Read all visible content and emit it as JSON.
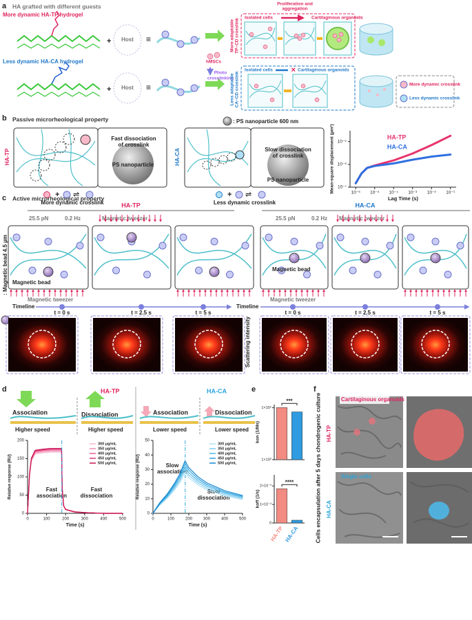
{
  "panel_a": {
    "label": "a",
    "heading": "HA grafted with different guests",
    "tp_title": "More dynamic HA-TP hydrogel",
    "ca_title": "Less dynamic HA-CA hydrogel",
    "host_top": "Host",
    "host_bottom": "Host",
    "plus_top": "+",
    "plus_bottom": "+",
    "cells": "hMSCs",
    "photo": [
      "Photo",
      "crosslinking"
    ],
    "tp_side": [
      "More adaptable",
      "TP–CD crosslink"
    ],
    "ca_side": [
      "Less adaptable",
      "CA–CD crosslink"
    ],
    "tp_isolated": "Isolated cells",
    "tp_prolif": [
      "Proliferation and",
      "aggregation"
    ],
    "tp_organoids": "Cartilaginous organoids",
    "ca_isolated": "Isolated cells",
    "ca_organoids": "Cartilaginous organoids",
    "legend_more": "More dynamic crosslink",
    "legend_less": "Less dynamic crosslink"
  },
  "panel_b": {
    "label": "b",
    "heading": "Passive microrheological property",
    "tp_tag": "HA-TP",
    "ca_tag": "HA-CA",
    "tp_fast": [
      "Fast dissociation",
      "of crosslink"
    ],
    "tp_ps": "PS nanoparticle",
    "ca_slow": [
      "Slow dissociation",
      "of crosslink"
    ],
    "ca_ps": "PS nanoparticle",
    "ps_key": ": PS nanoparticle 600 nm",
    "tp_caption": "More dynamic crosslink",
    "ca_caption": "Less dynamic crosslink",
    "chart": {
      "type": "line",
      "x_label": "Lag Time (s)",
      "y_label": "Mean-square displacement (µm²)",
      "log_x": true,
      "log_y": true,
      "legend": "upper center",
      "xlim": [
        5e-07,
        0.2
      ],
      "ylim": [
        1e-07,
        3e-05
      ],
      "xticks": [
        {
          "value": 1e-06,
          "label": "10⁻⁶"
        },
        {
          "value": 1e-05,
          "label": "10⁻⁵"
        },
        {
          "value": 0.0001,
          "label": "10⁻⁴"
        },
        {
          "value": 0.001,
          "label": "10⁻³"
        },
        {
          "value": 0.01,
          "label": "10⁻²"
        },
        {
          "value": 0.1,
          "label": "10⁻¹"
        }
      ],
      "yticks": [
        {
          "value": 1e-07,
          "label": "10⁻⁷"
        },
        {
          "value": 1e-06,
          "label": "10⁻⁶"
        },
        {
          "value": 1e-05,
          "label": "10⁻⁵"
        }
      ],
      "series": [
        {
          "name": "HA-TP",
          "color": "#e8336b",
          "x": [
            1e-06,
            2e-06,
            4e-06,
            1e-05,
            0.0001,
            0.001,
            0.01,
            0.1
          ],
          "values": [
            1.5e-07,
            4e-07,
            7e-07,
            9e-07,
            1.5e-06,
            3e-06,
            7e-06,
            1.8e-05
          ]
        },
        {
          "name": "HA-CA",
          "color": "#2f6fe0",
          "x": [
            1e-06,
            2e-06,
            4e-06,
            1e-05,
            0.0001,
            0.001,
            0.01,
            0.1
          ],
          "values": [
            1.5e-07,
            4e-07,
            7e-07,
            8.5e-07,
            1.1e-06,
            1.6e-06,
            2.2e-06,
            2.7e-06
          ]
        }
      ]
    }
  },
  "panel_c": {
    "label": "c",
    "heading": "Active microrheological property",
    "tp_tag": "HA-TP",
    "ca_tag": "HA-CA",
    "bead_key": ": Magnetic bead 4.5 µm",
    "tp_force": "25.5 pN",
    "tp_freq": "0.2 Hz",
    "tp_tweezer_top": "Magnetic tweezer",
    "tp_tweezer_bottom": "Magnetic tweezer",
    "tp_bead": "Magnetic bead",
    "ca_force": "25.5 pN",
    "ca_freq": "0.2 Hz",
    "ca_tweezer_top": "Magnetic tweezer",
    "ca_tweezer_bottom": "Magnetic tweezer",
    "ca_bead": "Magnetic bead",
    "tp_timeline": "Timeline",
    "ca_timeline": "Timeline",
    "tp_times": [
      "t = 0 s",
      "t = 2.5 s",
      "t = 5 s"
    ],
    "ca_times": [
      "t = 0 s",
      "t = 2.5 s",
      "t = 5 s"
    ],
    "scattering": "Scattering intensity"
  },
  "panel_d": {
    "label": "d",
    "tp_tag": "HA-TP",
    "ca_tag": "HA-CA",
    "tp_assoc": "Association",
    "tp_dissoc": "Dissociation",
    "tp_speed_a": "Higher speed",
    "tp_speed_d": "Higher speed",
    "ca_assoc": "Association",
    "ca_dissoc": "Dissociation",
    "ca_speed_a": "Lower speed",
    "ca_speed_d": "Lower speed",
    "tp_note_a": [
      "Fast",
      "association"
    ],
    "tp_note_d": [
      "Fast",
      "dissociation"
    ],
    "ca_note_a": [
      "Slow",
      "association"
    ],
    "ca_note_d": [
      "Slow",
      "dissociation"
    ],
    "charts": [
      {
        "type": "line",
        "x_label": "Time (s)",
        "y_label": "Relative response (RU)",
        "legend": "upper right",
        "xlim": [
          0,
          500
        ],
        "ylim": [
          0,
          200
        ],
        "xticks": [
          0,
          100,
          200,
          300,
          400,
          500
        ],
        "yticks": [
          0,
          50,
          100,
          150,
          200
        ],
        "x": [
          0,
          10,
          20,
          40,
          80,
          120,
          179,
          182,
          190,
          200,
          250,
          300,
          400,
          500
        ],
        "series": [
          {
            "name": "300 μg/mL",
            "color": "#f7b6cf",
            "values": [
              0,
              101,
              143,
              163,
              166,
              168,
              168,
              67,
              20,
              10,
              3,
              2,
              0,
              0
            ]
          },
          {
            "name": "350 μg/mL",
            "color": "#f08ab0",
            "values": [
              0,
              103,
              145,
              166,
              169,
              171,
              171,
              68,
              21,
              10,
              3,
              2,
              0,
              0
            ]
          },
          {
            "name": "400 μg/mL",
            "color": "#e85d92",
            "values": [
              0,
              104,
              148,
              169,
              172,
              174,
              174,
              70,
              21,
              10,
              3,
              2,
              0,
              0
            ]
          },
          {
            "name": "450 μg/mL",
            "color": "#e0357a",
            "values": [
              0,
              106,
              150,
              171,
              174,
              176,
              176,
              70,
              21,
              11,
              4,
              2,
              0,
              0
            ]
          },
          {
            "name": "500 μg/mL",
            "color": "#c8124f",
            "values": [
              0,
              107,
              151,
              173,
              176,
              178,
              178,
              71,
              21,
              11,
              4,
              2,
              0,
              0
            ]
          }
        ]
      },
      {
        "type": "line",
        "x_label": "Time (s)",
        "y_label": "Relative response (RU)",
        "legend": "upper right",
        "xlim": [
          0,
          500
        ],
        "ylim": [
          0,
          50
        ],
        "xticks": [
          0,
          100,
          200,
          300,
          400,
          500
        ],
        "yticks": [
          0,
          10,
          20,
          30,
          40,
          50
        ],
        "x": [
          0,
          20,
          40,
          80,
          120,
          150,
          179,
          182,
          190,
          200,
          250,
          300,
          400,
          500
        ],
        "series": [
          {
            "name": "300 μg/mL",
            "color": "#aee0f5",
            "values": [
              0,
              3.1,
              5.9,
              10.4,
              16,
              21,
              28,
              27.7,
              26,
              24.4,
              19.6,
              16.2,
              12,
              9.5
            ]
          },
          {
            "name": "350 μg/mL",
            "color": "#7ccbee",
            "values": [
              0,
              3.3,
              6.3,
              11.1,
              17.1,
              22.5,
              30,
              29.6,
              27.9,
              26.1,
              21,
              17.4,
              12.9,
              10.2
            ]
          },
          {
            "name": "400 μg/mL",
            "color": "#4db5e6",
            "values": [
              0,
              3.5,
              6.7,
              11.8,
              18.2,
              24,
              32,
              31.6,
              29.8,
              27.8,
              22.4,
              18.6,
              13.8,
              10.9
            ]
          },
          {
            "name": "450 μg/mL",
            "color": "#2a9fdc",
            "values": [
              0,
              3.7,
              7.1,
              12.6,
              19.4,
              25.5,
              34,
              33.5,
              31.6,
              29.6,
              23.8,
              19.7,
              14.6,
              11.6
            ]
          },
          {
            "name": "500 μg/mL",
            "color": "#1787cf",
            "values": [
              0,
              4,
              7.6,
              13.3,
              20.5,
              27,
              36,
              35.5,
              33.5,
              31.3,
              25.2,
              20.9,
              15.5,
              12.2
            ]
          }
        ]
      }
    ]
  },
  "panel_e": {
    "label": "e",
    "type": "bar",
    "categories": [
      "HA-TP",
      "HA-CA"
    ],
    "colors": [
      "#f28b82",
      "#2f9be0"
    ],
    "charts": [
      {
        "y_label": "kon (1/Ms)",
        "log_y": true,
        "ylim": [
          1,
          200000
        ],
        "yticks": [
          {
            "value": 1,
            "label": "1×10⁰"
          },
          {
            "value": 100000,
            "label": "1×10⁵"
          }
        ],
        "values": [
          105000,
          40000
        ],
        "significance": "***"
      },
      {
        "y_label": "koff (1/s)",
        "log_y": false,
        "ylim": [
          0,
          0.0026
        ],
        "yticks": [
          0,
          {
            "value": 0.001,
            "label": "1×10⁻³"
          },
          {
            "value": 0.002,
            "label": "2×10⁻³"
          }
        ],
        "values": [
          0.00185,
          0.00015
        ],
        "significance": "****"
      }
    ]
  },
  "panel_f": {
    "label": "f",
    "side": "Cells encapsulation after 5 days chondrogenic culture",
    "tp_caption": "Cartilaginous organoids",
    "tp_tag": "HA-TP",
    "ca_caption": "Single cells",
    "ca_tag": "HA-CA"
  }
}
